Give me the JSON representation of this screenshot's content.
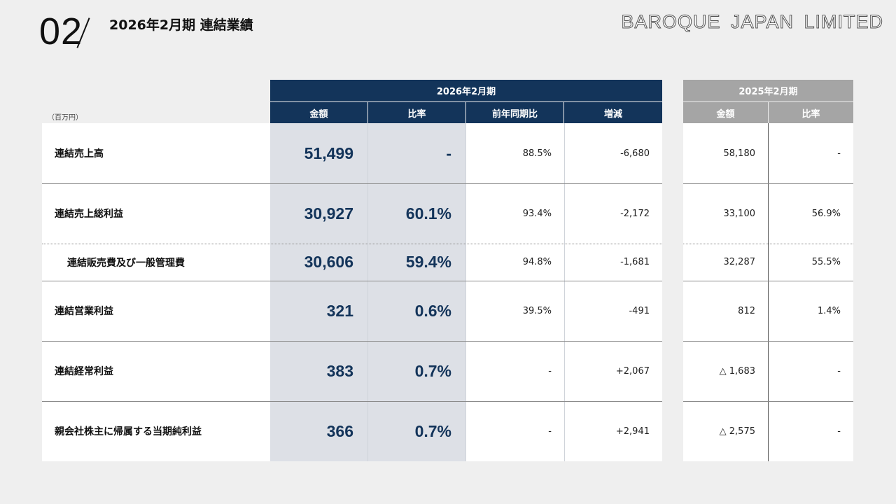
{
  "header": {
    "slide_number": "02",
    "title": "2026年2月期 連結業績",
    "brand": "BAROQUE JAPAN LIMITED"
  },
  "table": {
    "unit_label": "（百万円）",
    "current_period": "2026年2月期",
    "previous_period": "2025年2月期",
    "current_columns": [
      "金額",
      "比率",
      "前年同期比",
      "増減"
    ],
    "previous_columns": [
      "金額",
      "比率"
    ],
    "rows": [
      {
        "label": "連結売上高",
        "amount": "51,499",
        "ratio": "-",
        "yoy": "88.5%",
        "change": "-6,680",
        "prev_amount": "58,180",
        "prev_ratio": "-"
      },
      {
        "label": "連結売上総利益",
        "amount": "30,927",
        "ratio": "60.1%",
        "yoy": "93.4%",
        "change": "-2,172",
        "prev_amount": "33,100",
        "prev_ratio": "56.9%"
      },
      {
        "label": "連結販売費及び一般管理費",
        "amount": "30,606",
        "ratio": "59.4%",
        "yoy": "94.8%",
        "change": "-1,681",
        "prev_amount": "32,287",
        "prev_ratio": "55.5%"
      },
      {
        "label": "連結営業利益",
        "amount": "321",
        "ratio": "0.6%",
        "yoy": "39.5%",
        "change": "-491",
        "prev_amount": "812",
        "prev_ratio": "1.4%"
      },
      {
        "label": "連結経常利益",
        "amount": "383",
        "ratio": "0.7%",
        "yoy": "-",
        "change": "+2,067",
        "prev_amount": "△ 1,683",
        "prev_ratio": "-"
      },
      {
        "label": "親会社株主に帰属する当期純利益",
        "amount": "366",
        "ratio": "0.7%",
        "yoy": "-",
        "change": "+2,941",
        "prev_amount": "△ 2,575",
        "prev_ratio": "-"
      }
    ]
  }
}
